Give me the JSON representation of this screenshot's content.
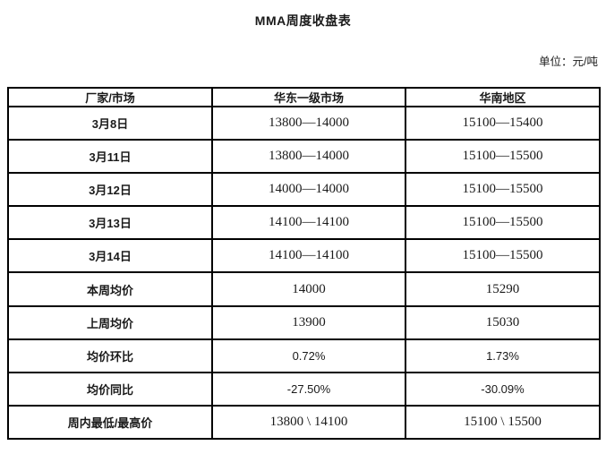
{
  "page": {
    "title": "MMA周度收盘表",
    "unit_label": "单位：元/吨"
  },
  "table": {
    "columns": [
      "厂家/市场",
      "华东一级市场",
      "华南地区"
    ],
    "rows": [
      {
        "label": "3月8日",
        "east": "13800—14000",
        "south": "15100—15400",
        "kind": "range"
      },
      {
        "label": "3月11日",
        "east": "13800—14000",
        "south": "15100—15500",
        "kind": "range"
      },
      {
        "label": "3月12日",
        "east": "14000—14000",
        "south": "15100—15500",
        "kind": "range"
      },
      {
        "label": "3月13日",
        "east": "14100—14100",
        "south": "15100—15500",
        "kind": "range"
      },
      {
        "label": "3月14日",
        "east": "14100—14100",
        "south": "15100—15500",
        "kind": "range"
      },
      {
        "label": "本周均价",
        "east": "14000",
        "south": "15290",
        "kind": "average"
      },
      {
        "label": "上周均价",
        "east": "13900",
        "south": "15030",
        "kind": "average"
      },
      {
        "label": "均价环比",
        "east": "0.72%",
        "south": "1.73%",
        "kind": "percent"
      },
      {
        "label": "均价同比",
        "east": "-27.50%",
        "south": "-30.09%",
        "kind": "percent"
      },
      {
        "label": "周内最低/最高价",
        "east": "13800 \\ 14100",
        "south": "15100 \\ 15500",
        "kind": "minmax"
      }
    ]
  },
  "colors": {
    "text": "#1a1a1a",
    "border": "#000000",
    "background": "#ffffff"
  }
}
